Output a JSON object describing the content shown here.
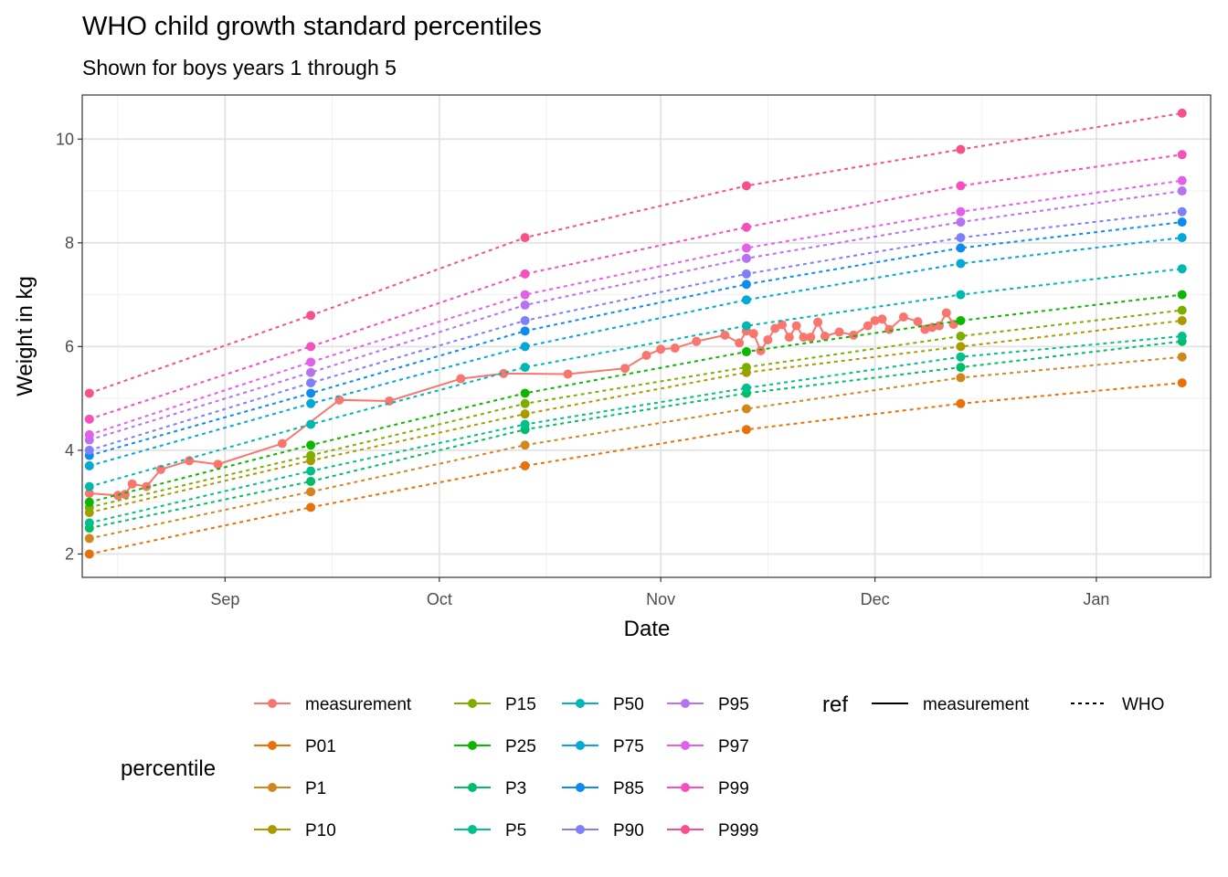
{
  "chart_data": {
    "type": "line",
    "title": "WHO child growth standard percentiles",
    "subtitle": "Shown for boys years 1 through 5",
    "xlabel": "Date",
    "ylabel": "Weight in kg",
    "xlim": [
      "2023-08-12",
      "2024-01-17"
    ],
    "ylim": [
      1.55,
      10.85
    ],
    "x_ticks": [
      {
        "date": "2023-09-01",
        "label": "Sep"
      },
      {
        "date": "2023-10-01",
        "label": "Oct"
      },
      {
        "date": "2023-11-01",
        "label": "Nov"
      },
      {
        "date": "2023-12-01",
        "label": "Dec"
      },
      {
        "date": "2024-01-01",
        "label": "Jan"
      }
    ],
    "x_minor_ticks": [
      "2023-08-17",
      "2023-09-16",
      "2023-10-16",
      "2023-11-16",
      "2023-12-16",
      "2024-01-16"
    ],
    "y_ticks": [
      2,
      4,
      6,
      8,
      10
    ],
    "y_minor_ticks": [
      3,
      5,
      7,
      9
    ],
    "grid": true,
    "legend_position": "bottom",
    "legend_color_title": "percentile",
    "legend_linetype_title": "ref",
    "linetype_legend": [
      {
        "label": "measurement",
        "style": "solid"
      },
      {
        "label": "WHO",
        "style": "dashed"
      }
    ],
    "who_dates": [
      "2023-08-13",
      "2023-09-13",
      "2023-10-13",
      "2023-11-13",
      "2023-12-13",
      "2024-01-13"
    ],
    "series": [
      {
        "name": "measurement",
        "color": "#F8766D",
        "linetype": "solid",
        "points": [
          [
            "2023-08-13",
            3.17
          ],
          [
            "2023-08-17",
            3.13
          ],
          [
            "2023-08-18",
            3.15
          ],
          [
            "2023-08-19",
            3.35
          ],
          [
            "2023-08-21",
            3.3
          ],
          [
            "2023-08-23",
            3.63
          ],
          [
            "2023-08-27",
            3.8
          ],
          [
            "2023-08-31",
            3.73
          ],
          [
            "2023-09-09",
            4.13
          ],
          [
            "2023-09-17",
            4.97
          ],
          [
            "2023-09-24",
            4.95
          ],
          [
            "2023-10-04",
            5.38
          ],
          [
            "2023-10-10",
            5.48
          ],
          [
            "2023-10-19",
            5.47
          ],
          [
            "2023-10-27",
            5.58
          ],
          [
            "2023-10-30",
            5.83
          ],
          [
            "2023-11-01",
            5.95
          ],
          [
            "2023-11-03",
            5.97
          ],
          [
            "2023-11-06",
            6.1
          ],
          [
            "2023-11-10",
            6.22
          ],
          [
            "2023-11-12",
            6.07
          ],
          [
            "2023-11-13",
            6.3
          ],
          [
            "2023-11-14",
            6.25
          ],
          [
            "2023-11-15",
            5.92
          ],
          [
            "2023-11-16",
            6.13
          ],
          [
            "2023-11-17",
            6.35
          ],
          [
            "2023-11-18",
            6.42
          ],
          [
            "2023-11-19",
            6.18
          ],
          [
            "2023-11-20",
            6.4
          ],
          [
            "2023-11-21",
            6.18
          ],
          [
            "2023-11-22",
            6.18
          ],
          [
            "2023-11-23",
            6.47
          ],
          [
            "2023-11-24",
            6.2
          ],
          [
            "2023-11-26",
            6.28
          ],
          [
            "2023-11-28",
            6.22
          ],
          [
            "2023-11-30",
            6.4
          ],
          [
            "2023-12-01",
            6.5
          ],
          [
            "2023-12-02",
            6.53
          ],
          [
            "2023-12-03",
            6.33
          ],
          [
            "2023-12-05",
            6.57
          ],
          [
            "2023-12-07",
            6.48
          ],
          [
            "2023-12-08",
            6.33
          ],
          [
            "2023-12-09",
            6.37
          ],
          [
            "2023-12-10",
            6.4
          ],
          [
            "2023-12-11",
            6.65
          ],
          [
            "2023-12-12",
            6.43
          ]
        ]
      },
      {
        "name": "P01",
        "color": "#E8710A",
        "linetype": "dashed",
        "values": [
          2.0,
          2.9,
          3.7,
          4.4,
          4.9,
          5.3
        ]
      },
      {
        "name": "P1",
        "color": "#D0881E",
        "linetype": "dashed",
        "values": [
          2.3,
          3.2,
          4.1,
          4.8,
          5.4,
          5.8
        ]
      },
      {
        "name": "P10",
        "color": "#AA9A00",
        "linetype": "dashed",
        "values": [
          2.8,
          3.8,
          4.7,
          5.5,
          6.0,
          6.5
        ]
      },
      {
        "name": "P15",
        "color": "#7CAE00",
        "linetype": "dashed",
        "values": [
          2.9,
          3.9,
          4.9,
          5.6,
          6.2,
          6.7
        ]
      },
      {
        "name": "P25",
        "color": "#0CB702",
        "linetype": "dashed",
        "values": [
          3.0,
          4.1,
          5.1,
          5.9,
          6.5,
          7.0
        ]
      },
      {
        "name": "P3",
        "color": "#00BE67",
        "linetype": "dashed",
        "values": [
          2.5,
          3.4,
          4.4,
          5.1,
          5.6,
          6.1
        ]
      },
      {
        "name": "P5",
        "color": "#00C08B",
        "linetype": "dashed",
        "values": [
          2.6,
          3.6,
          4.5,
          5.2,
          5.8,
          6.2
        ]
      },
      {
        "name": "P50",
        "color": "#00B8B3",
        "linetype": "dashed",
        "values": [
          3.3,
          4.5,
          5.6,
          6.4,
          7.0,
          7.5
        ]
      },
      {
        "name": "P75",
        "color": "#00A9D6",
        "linetype": "dashed",
        "values": [
          3.7,
          4.9,
          6.0,
          6.9,
          7.6,
          8.1
        ]
      },
      {
        "name": "P85",
        "color": "#0C8CEE",
        "linetype": "dashed",
        "values": [
          3.9,
          5.1,
          6.3,
          7.2,
          7.9,
          8.4
        ]
      },
      {
        "name": "P90",
        "color": "#7F7FFA",
        "linetype": "dashed",
        "values": [
          4.0,
          5.3,
          6.5,
          7.4,
          8.1,
          8.6
        ]
      },
      {
        "name": "P95",
        "color": "#B772F2",
        "linetype": "dashed",
        "values": [
          4.2,
          5.5,
          6.8,
          7.7,
          8.4,
          9.0
        ]
      },
      {
        "name": "P97",
        "color": "#E560EA",
        "linetype": "dashed",
        "values": [
          4.3,
          5.7,
          7.0,
          7.9,
          8.6,
          9.2
        ]
      },
      {
        "name": "P99",
        "color": "#F64FBE",
        "linetype": "dashed",
        "values": [
          4.6,
          6.0,
          7.4,
          8.3,
          9.1,
          9.7
        ]
      },
      {
        "name": "P999",
        "color": "#F8508A",
        "linetype": "dashed",
        "values": [
          5.1,
          6.6,
          8.1,
          9.1,
          9.8,
          10.5
        ]
      }
    ]
  }
}
